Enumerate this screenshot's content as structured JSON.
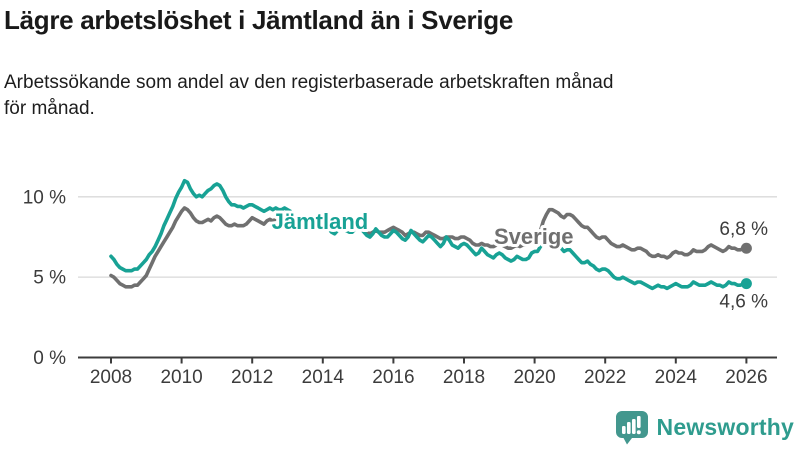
{
  "title": "Lägre arbetslöshet i Jämtland än i Sverige",
  "subtitle": "Arbetssökande som andel av den registerbaserade arbetskraften månad\nför månad.",
  "colors": {
    "jamtland": "#18a295",
    "sverige": "#707070",
    "grid": "#d9d9d9",
    "axis": "#3c3c3c",
    "title_text": "#191919",
    "brand": "#2f9c8e",
    "brand_mark": "#43978e"
  },
  "footer": {
    "brand": "Newsworthy",
    "logo": "newsworthy-bar-chart-badge-icon"
  },
  "chart_data": {
    "type": "line",
    "title": "Lägre arbetslöshet i Jämtland än i Sverige",
    "subtitle": "Arbetssökande som andel av den registerbaserade arbetskraften månad för månad.",
    "x_unit": "months",
    "x_start": "2008-01",
    "x_end": "2026-01",
    "xlabel": "",
    "ylabel": "",
    "ylim": [
      0,
      12
    ],
    "grid": "horizontal",
    "legend_position": "inline-labels",
    "xticks": [
      2008,
      2010,
      2012,
      2014,
      2016,
      2018,
      2020,
      2022,
      2024,
      2026
    ],
    "yticks": [
      {
        "value": 0,
        "label": "0 %"
      },
      {
        "value": 5,
        "label": "5 %"
      },
      {
        "value": 10,
        "label": "10 %"
      }
    ],
    "series": [
      {
        "name": "Sverige",
        "color_key": "sverige",
        "end_label": "6,8 %",
        "end_label_side": "above",
        "label_year": 2018.85,
        "label_value": 7.05,
        "values": [
          5.1,
          5.0,
          4.8,
          4.6,
          4.5,
          4.4,
          4.4,
          4.4,
          4.5,
          4.5,
          4.7,
          4.9,
          5.1,
          5.5,
          5.9,
          6.3,
          6.6,
          6.9,
          7.2,
          7.5,
          7.8,
          8.1,
          8.5,
          8.8,
          9.1,
          9.3,
          9.2,
          9.0,
          8.7,
          8.5,
          8.4,
          8.4,
          8.5,
          8.6,
          8.5,
          8.7,
          8.8,
          8.7,
          8.5,
          8.3,
          8.2,
          8.2,
          8.3,
          8.2,
          8.2,
          8.2,
          8.3,
          8.5,
          8.7,
          8.6,
          8.5,
          8.4,
          8.3,
          8.5,
          8.6,
          8.5,
          8.6,
          8.7,
          8.8,
          9.0,
          9.0,
          8.9,
          8.8,
          8.6,
          8.5,
          8.6,
          8.7,
          8.5,
          8.5,
          8.4,
          8.4,
          8.6,
          8.6,
          8.5,
          8.3,
          8.1,
          8.0,
          8.1,
          8.2,
          8.0,
          7.9,
          7.9,
          7.9,
          8.1,
          8.2,
          8.1,
          8.0,
          7.8,
          7.7,
          7.8,
          7.9,
          7.8,
          7.8,
          7.8,
          7.9,
          8.0,
          8.1,
          8.0,
          7.9,
          7.8,
          7.6,
          7.7,
          7.8,
          7.8,
          7.7,
          7.6,
          7.6,
          7.8,
          7.8,
          7.7,
          7.6,
          7.5,
          7.4,
          7.4,
          7.5,
          7.5,
          7.5,
          7.4,
          7.4,
          7.5,
          7.5,
          7.4,
          7.3,
          7.1,
          7.0,
          7.0,
          7.1,
          7.0,
          7.0,
          6.9,
          6.9,
          7.0,
          7.1,
          7.0,
          6.9,
          6.8,
          6.8,
          6.9,
          7.0,
          6.9,
          7.0,
          7.0,
          7.1,
          7.4,
          7.5,
          7.6,
          7.9,
          8.5,
          8.9,
          9.2,
          9.2,
          9.1,
          9.0,
          8.8,
          8.7,
          8.9,
          8.9,
          8.8,
          8.6,
          8.4,
          8.2,
          8.1,
          8.1,
          7.9,
          7.7,
          7.5,
          7.4,
          7.5,
          7.5,
          7.3,
          7.1,
          7.0,
          6.9,
          6.9,
          7.0,
          6.9,
          6.8,
          6.7,
          6.7,
          6.8,
          6.8,
          6.7,
          6.6,
          6.4,
          6.3,
          6.3,
          6.4,
          6.3,
          6.3,
          6.2,
          6.3,
          6.5,
          6.6,
          6.5,
          6.5,
          6.4,
          6.4,
          6.5,
          6.7,
          6.6,
          6.6,
          6.6,
          6.7,
          6.9,
          7.0,
          6.9,
          6.8,
          6.7,
          6.6,
          6.7,
          6.9,
          6.8,
          6.8,
          6.7,
          6.7,
          6.8,
          6.8
        ]
      },
      {
        "name": "Jämtland",
        "color_key": "jamtland",
        "end_label": "4,6 %",
        "end_label_side": "below",
        "label_year": 2012.55,
        "label_value": 8.0,
        "values": [
          6.3,
          6.1,
          5.8,
          5.6,
          5.5,
          5.4,
          5.4,
          5.4,
          5.5,
          5.5,
          5.7,
          5.9,
          6.1,
          6.4,
          6.6,
          6.9,
          7.3,
          7.7,
          8.2,
          8.6,
          9.0,
          9.4,
          9.9,
          10.3,
          10.6,
          11.0,
          10.9,
          10.5,
          10.2,
          10.0,
          10.1,
          10.0,
          10.2,
          10.4,
          10.5,
          10.7,
          10.8,
          10.7,
          10.4,
          10.0,
          9.7,
          9.5,
          9.5,
          9.4,
          9.4,
          9.3,
          9.4,
          9.5,
          9.5,
          9.4,
          9.3,
          9.2,
          9.1,
          9.2,
          9.3,
          9.2,
          9.3,
          9.2,
          9.2,
          9.3,
          9.2,
          9.1,
          8.9,
          8.7,
          8.5,
          8.5,
          8.6,
          8.4,
          8.3,
          8.2,
          8.2,
          8.3,
          8.3,
          8.2,
          8.0,
          7.8,
          7.7,
          7.9,
          8.2,
          8.0,
          7.9,
          7.8,
          7.8,
          8.0,
          8.1,
          8.0,
          7.8,
          7.6,
          7.5,
          7.7,
          8.0,
          7.8,
          7.6,
          7.5,
          7.5,
          7.7,
          7.9,
          7.8,
          7.6,
          7.4,
          7.3,
          7.5,
          7.9,
          7.7,
          7.5,
          7.3,
          7.2,
          7.4,
          7.6,
          7.5,
          7.3,
          7.1,
          6.9,
          7.1,
          7.5,
          7.3,
          7.0,
          6.9,
          6.8,
          7.0,
          7.1,
          7.0,
          6.8,
          6.6,
          6.4,
          6.5,
          6.8,
          6.6,
          6.4,
          6.3,
          6.2,
          6.4,
          6.5,
          6.4,
          6.2,
          6.1,
          6.0,
          6.1,
          6.3,
          6.2,
          6.1,
          6.1,
          6.2,
          6.5,
          6.6,
          6.6,
          6.9,
          7.2,
          7.3,
          7.4,
          7.4,
          7.2,
          7.0,
          6.8,
          6.6,
          6.7,
          6.7,
          6.5,
          6.3,
          6.1,
          5.9,
          5.9,
          6.0,
          5.8,
          5.7,
          5.5,
          5.4,
          5.5,
          5.5,
          5.4,
          5.2,
          5.0,
          4.9,
          4.9,
          5.0,
          4.9,
          4.8,
          4.7,
          4.6,
          4.7,
          4.7,
          4.6,
          4.5,
          4.4,
          4.3,
          4.4,
          4.5,
          4.4,
          4.4,
          4.3,
          4.4,
          4.5,
          4.6,
          4.5,
          4.4,
          4.4,
          4.4,
          4.5,
          4.7,
          4.6,
          4.5,
          4.5,
          4.5,
          4.6,
          4.7,
          4.6,
          4.5,
          4.5,
          4.4,
          4.5,
          4.7,
          4.6,
          4.6,
          4.5,
          4.5,
          4.6,
          4.6
        ]
      }
    ]
  }
}
